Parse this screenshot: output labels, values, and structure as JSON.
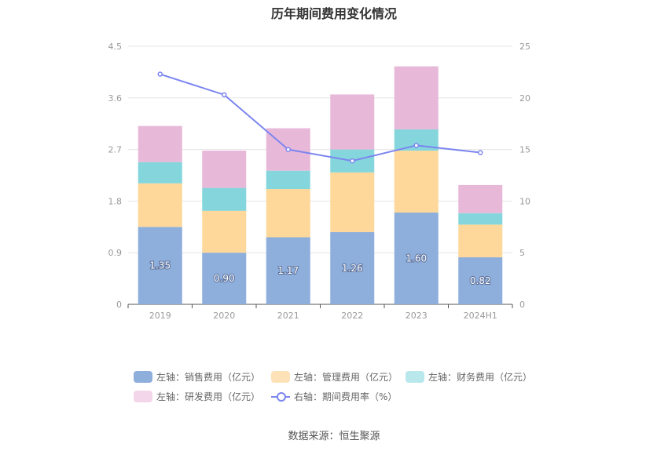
{
  "chart_data": {
    "type": "bar",
    "title": "历年期间费用变化情况",
    "categories": [
      "2019",
      "2020",
      "2021",
      "2022",
      "2023",
      "2024H1"
    ],
    "stacked": true,
    "series": [
      {
        "name": "左轴：销售费用（亿元）",
        "axis": "left",
        "color": "#8eaedb",
        "values": [
          1.35,
          0.9,
          1.17,
          1.26,
          1.6,
          0.82
        ],
        "data_labels": [
          "1.35",
          "0.90",
          "1.17",
          "1.26",
          "1.60",
          "0.82"
        ]
      },
      {
        "name": "左轴：管理费用（亿元）",
        "axis": "left",
        "color": "#fdd89a",
        "values": [
          0.76,
          0.73,
          0.84,
          1.04,
          1.08,
          0.57
        ]
      },
      {
        "name": "左轴：财务费用（亿元）",
        "axis": "left",
        "color": "#85d6dc",
        "values": [
          0.37,
          0.4,
          0.32,
          0.4,
          0.37,
          0.2
        ]
      },
      {
        "name": "左轴：研发费用（亿元）",
        "axis": "left",
        "color": "#e8b8d9",
        "values": [
          0.63,
          0.65,
          0.74,
          0.96,
          1.1,
          0.49
        ]
      }
    ],
    "line_series": {
      "name": "右轴：期间费用率（%）",
      "axis": "right",
      "type": "line",
      "color": "#7b85f0",
      "values": [
        22.3,
        20.3,
        15.0,
        13.9,
        15.4,
        14.7
      ]
    },
    "y_left": {
      "ticks": [
        "0",
        "0.9",
        "1.8",
        "2.7",
        "3.6",
        "4.5"
      ],
      "ylim": [
        0,
        4.5
      ]
    },
    "y_right": {
      "ticks": [
        "0",
        "5",
        "10",
        "15",
        "20",
        "25"
      ],
      "ylim": [
        0,
        25
      ]
    },
    "grid": true,
    "legend_position": "bottom"
  },
  "legend": [
    {
      "label": "左轴：销售费用（亿元）",
      "kind": "bar",
      "color": "#8eaedb"
    },
    {
      "label": "左轴：管理费用（亿元）",
      "kind": "bar",
      "color": "#fde2b8"
    },
    {
      "label": "左轴：财务费用（亿元）",
      "kind": "bar",
      "color": "#b8e8ec"
    },
    {
      "label": "左轴：研发费用（亿元）",
      "kind": "bar",
      "color": "#f3d6ea"
    },
    {
      "label": "右轴：期间费用率（%）",
      "kind": "line",
      "color": "#7b85f0"
    }
  ],
  "source": "数据来源：恒生聚源"
}
